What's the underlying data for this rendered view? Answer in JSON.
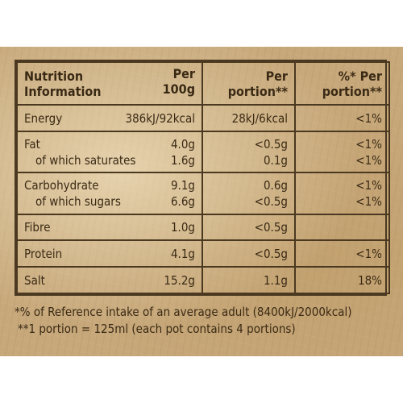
{
  "table": {
    "header": {
      "nutrition_line1": "Nutrition",
      "nutrition_line2": "Information",
      "per100_line1": "Per",
      "per100_line2": "100g",
      "portion_line1": "Per",
      "portion_line2": "portion**",
      "ri_line1": "%* Per",
      "ri_line2": "portion**"
    },
    "rows": [
      {
        "name": "Energy",
        "per100": "386kJ/92kcal",
        "portion": "28kJ/6kcal",
        "ri": "<1%"
      },
      {
        "name": "Fat",
        "per100": "4.0g",
        "portion": "<0.5g",
        "ri": "<1%",
        "sub_name": "of which saturates",
        "sub_per100": "1.6g",
        "sub_portion": "0.1g",
        "sub_ri": "<1%"
      },
      {
        "name": "Carbohydrate",
        "per100": "9.1g",
        "portion": "0.6g",
        "ri": "<1%",
        "sub_name": "of which sugars",
        "sub_per100": "6.6g",
        "sub_portion": "<0.5g",
        "sub_ri": "<1%"
      },
      {
        "name": "Fibre",
        "per100": "1.0g",
        "portion": "<0.5g",
        "ri": ""
      },
      {
        "name": "Protein",
        "per100": "4.1g",
        "portion": "<0.5g",
        "ri": "<1%"
      },
      {
        "name": "Salt",
        "per100": "15.2g",
        "portion": "1.1g",
        "ri": "18%"
      }
    ]
  },
  "footnotes": {
    "line1": "*% of Reference intake of an average adult (8400kJ/2000kcal)",
    "line2": "**1 portion = 125ml (each pot contains 4 portions)"
  },
  "colors": {
    "label_background": "#c7a87a",
    "text": "#3a2a15",
    "border": "#4a3820"
  }
}
